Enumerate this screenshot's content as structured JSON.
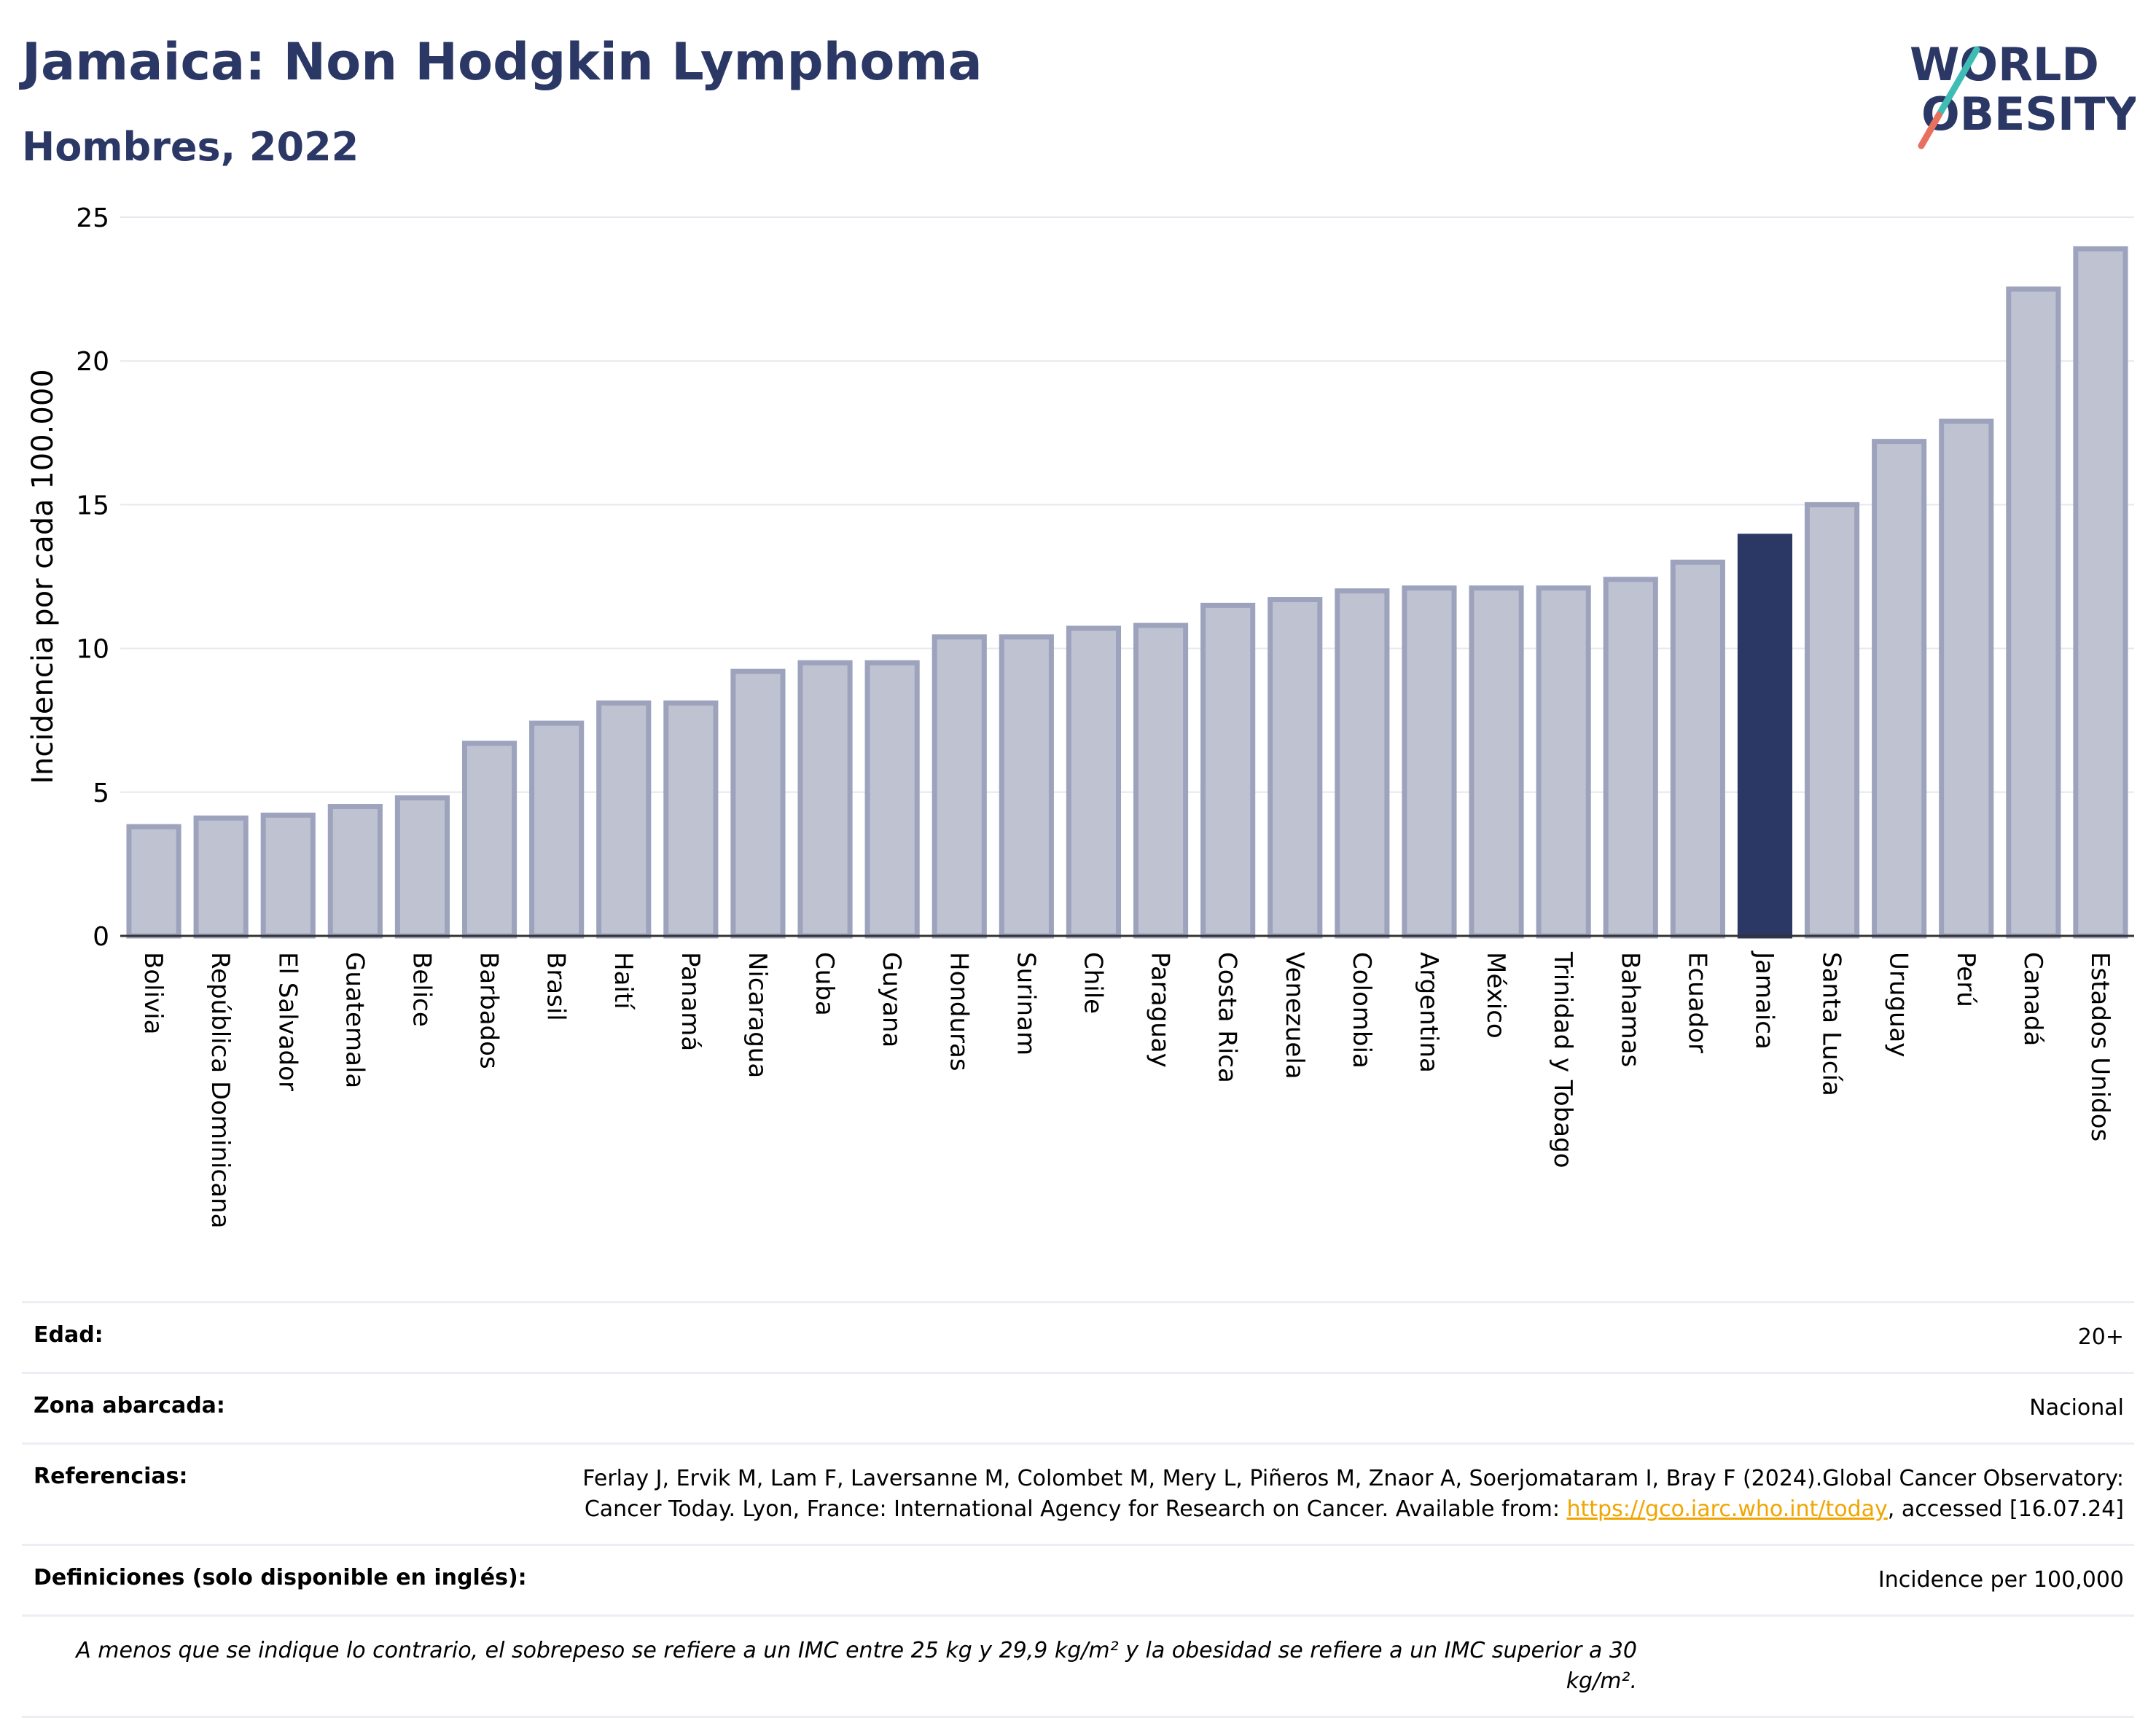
{
  "header": {
    "title": "Jamaica: Non Hodgkin Lymphoma",
    "subtitle": "Hombres, 2022",
    "logo_line1": "WORLD",
    "logo_line2": "OBESITY"
  },
  "colors": {
    "bar_default": "#bfc3d1",
    "bar_border": "#9ea3bd",
    "bar_highlight": "#2b3765",
    "title": "#2b3765",
    "logo_accent_teal": "#3ebdb5",
    "logo_accent_red": "#e8705f"
  },
  "chart_data": {
    "type": "bar",
    "ylabel": "Incidencia por cada 100.000",
    "ylim": [
      0,
      25
    ],
    "yticks": [
      0,
      5,
      10,
      15,
      20,
      25
    ],
    "grid": true,
    "highlight": "Jamaica",
    "categories": [
      "Bolivia",
      "República Dominicana",
      "El Salvador",
      "Guatemala",
      "Belice",
      "Barbados",
      "Brasil",
      "Haití",
      "Panamá",
      "Nicaragua",
      "Cuba",
      "Guyana",
      "Honduras",
      "Surinam",
      "Chile",
      "Paraguay",
      "Costa Rica",
      "Venezuela",
      "Colombia",
      "Argentina",
      "México",
      "Trinidad y Tobago",
      "Bahamas",
      "Ecuador",
      "Jamaica",
      "Santa Lucía",
      "Uruguay",
      "Perú",
      "Canadá",
      "Estados Unidos"
    ],
    "values": [
      3.8,
      4.1,
      4.2,
      4.5,
      4.8,
      6.7,
      7.4,
      8.1,
      8.1,
      9.2,
      9.5,
      9.5,
      10.4,
      10.4,
      10.7,
      10.8,
      11.5,
      11.7,
      12.0,
      12.1,
      12.1,
      12.1,
      12.4,
      13.0,
      13.9,
      15.0,
      17.2,
      17.9,
      22.5,
      23.9
    ]
  },
  "info": {
    "age_label": "Edad:",
    "age_value": "20+",
    "zone_label": "Zona abarcada:",
    "zone_value": "Nacional",
    "refs_label": "Referencias:",
    "refs_text1": "Ferlay J, Ervik M, Lam F, Laversanne M, Colombet M, Mery L, Piñeros M, Znaor A, Soerjomataram I, Bray F (2024).Global Cancer Observatory: Cancer Today. Lyon, France: International Agency for Research on Cancer. Available from: ",
    "refs_link": "https://gco.iarc.who.int/today",
    "refs_text2": ", accessed [16.07.24]",
    "defs_label": "Definiciones (solo disponible en inglés):",
    "defs_value": "Incidence per 100,000",
    "footnote": "A menos que se indique lo contrario, el sobrepeso se refiere a un IMC entre 25 kg y 29,9 kg/m² y la obesidad se refiere a un IMC superior a 30 kg/m²."
  }
}
